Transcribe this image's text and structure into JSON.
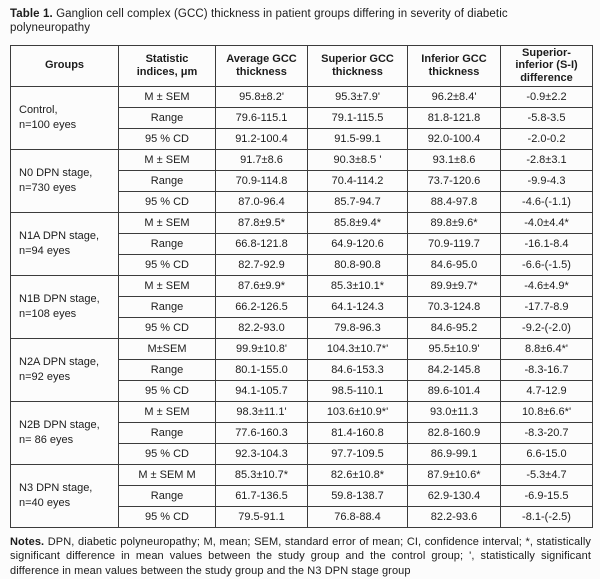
{
  "title": {
    "label": "Table 1.",
    "text": " Ganglion cell complex (GCC) thickness in patient groups differing in severity of diabetic polyneuropathy"
  },
  "table": {
    "headers": [
      "Groups",
      "Statistic\nindices, μm",
      "Average GCC\nthickness",
      "Superior GCC\nthickness",
      "Inferior GCC\nthickness",
      "Superior-\ninferior (S-I)\ndifference"
    ],
    "groups": [
      {
        "name": "Control,\nn=100 eyes",
        "rows": [
          {
            "stat": "M ± SEM",
            "values": [
              "95.8±8.2'",
              "95.3±7.9'",
              "96.2±8.4'",
              "-0.9±2.2"
            ]
          },
          {
            "stat": "Range",
            "values": [
              "79.6-115.1",
              "79.1-115.5",
              "81.8-121.8",
              "-5.8-3.5"
            ]
          },
          {
            "stat": "95 % CD",
            "values": [
              "91.2-100.4",
              "91.5-99.1",
              "92.0-100.4",
              "-2.0-0.2"
            ]
          }
        ]
      },
      {
        "name": "N0 DPN stage,\nn=730 eyes",
        "rows": [
          {
            "stat": "M ± SEM",
            "values": [
              "91.7±8.6",
              "90.3±8.5 '",
              "93.1±8.6",
              "-2.8±3.1"
            ]
          },
          {
            "stat": "Range",
            "values": [
              "70.9-114.8",
              "70.4-114.2",
              "73.7-120.6",
              "-9.9-4.3"
            ]
          },
          {
            "stat": "95 % CD",
            "values": [
              "87.0-96.4",
              "85.7-94.7",
              "88.4-97.8",
              "-4.6-(-1.1)"
            ]
          }
        ]
      },
      {
        "name": "N1A DPN stage,\nn=94 eyes",
        "rows": [
          {
            "stat": "M ± SEM",
            "values": [
              "87.8±9.5*",
              "85.8±9.4*",
              "89.8±9.6*",
              "-4.0±4.4*"
            ]
          },
          {
            "stat": "Range",
            "values": [
              "66.8-121.8",
              "64.9-120.6",
              "70.9-119.7",
              "-16.1-8.4"
            ]
          },
          {
            "stat": "95 % CD",
            "values": [
              "82.7-92.9",
              "80.8-90.8",
              "84.6-95.0",
              "-6.6-(-1.5)"
            ]
          }
        ]
      },
      {
        "name": "N1B DPN stage,\nn=108 eyes",
        "rows": [
          {
            "stat": "M ± SEM",
            "values": [
              "87.6±9.9*",
              "85.3±10.1*",
              "89.9±9.7*",
              "-4.6±4.9*"
            ]
          },
          {
            "stat": "Range",
            "values": [
              "66.2-126.5",
              "64.1-124.3",
              "70.3-124.8",
              "-17.7-8.9"
            ]
          },
          {
            "stat": "95 % CD",
            "values": [
              "82.2-93.0",
              "79.8-96.3",
              "84.6-95.2",
              "-9.2-(-2.0)"
            ]
          }
        ]
      },
      {
        "name": "N2A DPN stage,\nn=92 eyes",
        "rows": [
          {
            "stat": "M±SEM",
            "values": [
              "99.9±10.8'",
              "104.3±10.7*'",
              "95.5±10.9'",
              "8.8±6.4*'"
            ]
          },
          {
            "stat": "Range",
            "values": [
              "80.1-155.0",
              "84.6-153.3",
              "84.2-145.8",
              "-8.3-16.7"
            ]
          },
          {
            "stat": "95 % CD",
            "values": [
              "94.1-105.7",
              "98.5-110.1",
              "89.6-101.4",
              "4.7-12.9"
            ]
          }
        ]
      },
      {
        "name": "N2B DPN stage,\nn= 86 eyes",
        "rows": [
          {
            "stat": "M ± SEM",
            "values": [
              "98.3±11.1'",
              "103.6±10.9*'",
              "93.0±11.3",
              "10.8±6.6*'"
            ]
          },
          {
            "stat": "Range",
            "values": [
              "77.6-160.3",
              "81.4-160.8",
              "82.8-160.9",
              "-8.3-20.7"
            ]
          },
          {
            "stat": "95 % CD",
            "values": [
              "92.3-104.3",
              "97.7-109.5",
              "86.9-99.1",
              "6.6-15.0"
            ]
          }
        ]
      },
      {
        "name": "N3 DPN stage,\nn=40 eyes",
        "rows": [
          {
            "stat": "M ± SEM M",
            "values": [
              "85.3±10.7*",
              "82.6±10.8*",
              "87.9±10.6*",
              "-5.3±4.7"
            ]
          },
          {
            "stat": "Range",
            "values": [
              "61.7-136.5",
              "59.8-138.7",
              "62.9-130.4",
              "-6.9-15.5"
            ]
          },
          {
            "stat": "95 % CD",
            "values": [
              "79.5-91.1",
              "76.8-88.4",
              "82.2-93.6",
              "-8.1-(-2.5)"
            ]
          }
        ]
      }
    ]
  },
  "notes": {
    "label": "Notes.",
    "text": " DPN, diabetic polyneuropathy; M, mean; SEM, standard error of mean; CI, confidence interval; *, statistically significant difference in mean values between the study group and the control group; ', statistically significant difference in mean values between the study group and the N3 DPN stage group"
  }
}
